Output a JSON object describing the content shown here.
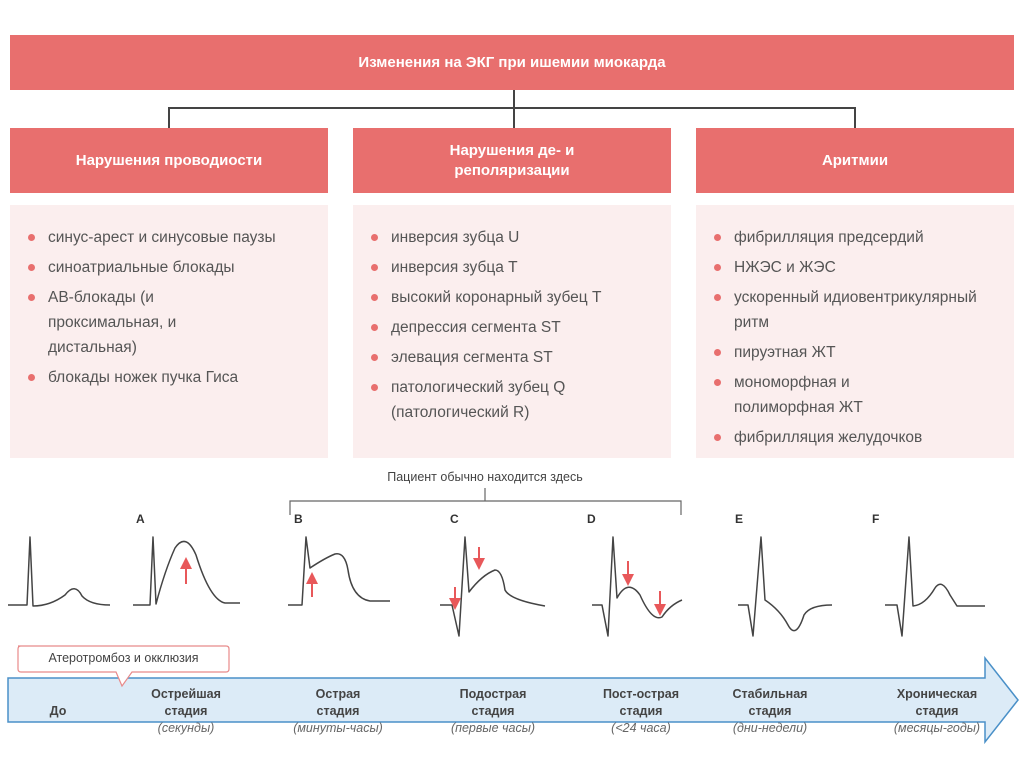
{
  "title": "Изменения на ЭКГ при ишемии миокарда",
  "categories": [
    {
      "label": "Нарушения проводиости",
      "items": [
        "синус-арест и синусовые паузы",
        "синоатриальные блокады",
        "АВ-блокады (и проксимальная, и дистальная)",
        "блокады ножек пучка Гиса"
      ]
    },
    {
      "label": "Нарушения де- и реполяризации",
      "items": [
        "инверсия зубца U",
        "инверсия зубца Т",
        "высокий коронарный зубец Т",
        "депрессия сегмента ST",
        "элевация сегмента ST",
        "патологический зубец Q (патологический R)"
      ]
    },
    {
      "label": "Аритмии",
      "items": [
        "фибрилляция предсердий",
        "НЖЭС и ЖЭС",
        "ускоренный идиовентрикулярный ритм",
        "пируэтная ЖТ",
        "мономорфная и полиморфная ЖТ",
        "фибрилляция желудочков"
      ]
    }
  ],
  "patient_note": "Пациент обычно находится здесь",
  "ecg_letters": [
    "A",
    "B",
    "C",
    "D",
    "E",
    "F"
  ],
  "callout": "Атеротромбоз и окклюзия",
  "stages": [
    {
      "name": "До",
      "name2": "",
      "period": ""
    },
    {
      "name": "Острейшая",
      "name2": "стадия",
      "period": "(секунды)"
    },
    {
      "name": "Острая",
      "name2": "стадия",
      "period": "(минуты-часы)"
    },
    {
      "name": "Подострая",
      "name2": "стадия",
      "period": "(первые часы)"
    },
    {
      "name": "Пост-острая",
      "name2": "стадия",
      "period": "(<24 часа)"
    },
    {
      "name": "Стабильная",
      "name2": "стадия",
      "period": "(дни-недели)"
    },
    {
      "name": "Хроническая",
      "name2": "стадия",
      "period": "(месяцы-годы)"
    }
  ],
  "colors": {
    "accent": "#e86f6e",
    "panel": "#fbeeee",
    "timeline": "#dcebf7",
    "timeline_border": "#4a90c8"
  }
}
